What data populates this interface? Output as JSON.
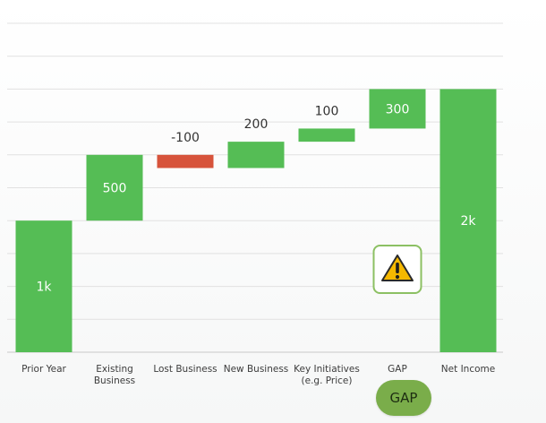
{
  "chart_data": {
    "type": "waterfall",
    "title": "",
    "xlabel": "",
    "ylabel": "",
    "categories": [
      "Prior Year",
      "Existing\nBusiness",
      "Lost Business",
      "New Business",
      "Key Initiatives\n(e.g. Price)",
      "GAP",
      "Net Income"
    ],
    "values": [
      1000,
      500,
      -100,
      200,
      100,
      300,
      2000
    ],
    "kinds": [
      "total",
      "delta",
      "delta",
      "delta",
      "delta",
      "delta",
      "total"
    ],
    "data_labels": [
      "1k",
      "500",
      "-100",
      "200",
      "100",
      "300",
      "2k"
    ],
    "ylim": [
      0,
      2500
    ],
    "grid": true,
    "colors": {
      "positive": "#55bd55",
      "negative": "#d7533b",
      "grid": "#e1e1e1",
      "tick_text": "#3c3c3c"
    }
  },
  "gap_warning": {
    "icon": "warning-icon",
    "border_color": "#8cc063"
  },
  "gap_button": {
    "label": "GAP",
    "color": "#7aad4a"
  }
}
